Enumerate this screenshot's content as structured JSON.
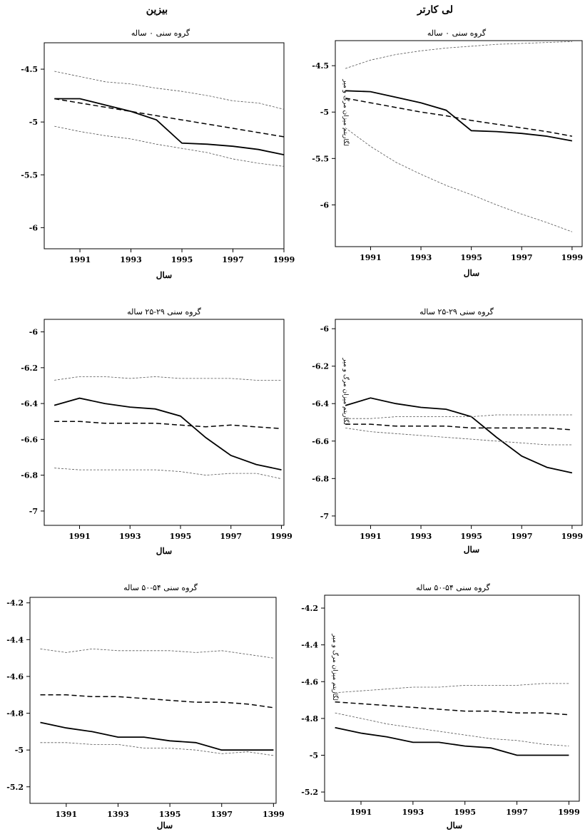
{
  "columns": {
    "left_title": "بیزین",
    "right_title": "لی کارتر"
  },
  "chart_data": [
    {
      "type": "line",
      "title": "گروه سنی ۰ ساله",
      "xlabel": "سال",
      "ylabel": "",
      "x": [
        1990,
        1991,
        1992,
        1993,
        1994,
        1995,
        1996,
        1997,
        1998,
        1999
      ],
      "xticks": [
        "1991",
        "1993",
        "1995",
        "1997",
        "1999"
      ],
      "xtick_values": [
        1991,
        1993,
        1995,
        1997,
        1999
      ],
      "yticks": [
        -4.5,
        -5,
        -5.5,
        -6
      ],
      "ytick_labels": [
        "-4.5",
        "-5",
        "-5.5",
        "-6"
      ],
      "xlim": [
        1989.6,
        1999.0
      ],
      "ylim": [
        -6.2,
        -4.25
      ],
      "series": [
        {
          "style": "solid",
          "values": [
            -4.78,
            -4.78,
            -4.84,
            -4.9,
            -4.98,
            -5.2,
            -5.21,
            -5.23,
            -5.26,
            -5.31
          ]
        },
        {
          "style": "dashed",
          "values": [
            -4.78,
            -4.82,
            -4.86,
            -4.9,
            -4.94,
            -4.98,
            -5.02,
            -5.06,
            -5.1,
            -5.14
          ]
        },
        {
          "style": "dotted",
          "values": [
            -4.52,
            -4.57,
            -4.62,
            -4.64,
            -4.68,
            -4.71,
            -4.75,
            -4.8,
            -4.82,
            -4.88
          ]
        },
        {
          "style": "dotted",
          "values": [
            -5.04,
            -5.09,
            -5.13,
            -5.16,
            -5.21,
            -5.25,
            -5.29,
            -5.35,
            -5.39,
            -5.42
          ]
        }
      ]
    },
    {
      "type": "line",
      "title": "گروه سنی ۰ ساله",
      "xlabel": "سال",
      "ylabel": "لگاریتم میزان مرگ و میر",
      "x": [
        1990,
        1991,
        1992,
        1993,
        1994,
        1995,
        1996,
        1997,
        1998,
        1999
      ],
      "xticks": [
        "1991",
        "1993",
        "1995",
        "1997",
        "1999"
      ],
      "xtick_values": [
        1991,
        1993,
        1995,
        1997,
        1999
      ],
      "yticks": [
        -4.5,
        -5,
        -5.5,
        -6
      ],
      "ytick_labels": [
        "-4.5",
        "-5",
        "-5.5",
        "-6"
      ],
      "xlim": [
        1989.6,
        1999.4
      ],
      "ylim": [
        -6.45,
        -4.23
      ],
      "series": [
        {
          "style": "solid",
          "values": [
            -4.77,
            -4.78,
            -4.84,
            -4.9,
            -4.98,
            -5.2,
            -5.21,
            -5.23,
            -5.26,
            -5.31
          ]
        },
        {
          "style": "dashed",
          "values": [
            -4.85,
            -4.9,
            -4.95,
            -5.0,
            -5.04,
            -5.09,
            -5.13,
            -5.17,
            -5.21,
            -5.26
          ]
        },
        {
          "style": "dotted",
          "values": [
            -4.53,
            -4.44,
            -4.38,
            -4.34,
            -4.31,
            -4.29,
            -4.27,
            -4.26,
            -4.25,
            -4.24
          ]
        },
        {
          "style": "dotted",
          "values": [
            -5.17,
            -5.37,
            -5.54,
            -5.67,
            -5.79,
            -5.89,
            -6.0,
            -6.1,
            -6.19,
            -6.29
          ]
        }
      ]
    },
    {
      "type": "line",
      "title": "گروه سنی ۲۹-۲۵ ساله",
      "xlabel": "سال",
      "ylabel": "",
      "x": [
        1990,
        1991,
        1992,
        1993,
        1994,
        1995,
        1996,
        1997,
        1998,
        1999
      ],
      "xticks": [
        "1991",
        "1993",
        "1995",
        "1997",
        "1999"
      ],
      "xtick_values": [
        1991,
        1993,
        1995,
        1997,
        1999
      ],
      "yticks": [
        -6,
        -6.2,
        -6.4,
        -6.6,
        -6.8,
        -7
      ],
      "ytick_labels": [
        "-6",
        "-6.2",
        "-6.4",
        "-6.6",
        "-6.8",
        "-7"
      ],
      "xlim": [
        1989.6,
        1999.1
      ],
      "ylim": [
        -7.08,
        -5.93
      ],
      "series": [
        {
          "style": "solid",
          "values": [
            -6.41,
            -6.37,
            -6.4,
            -6.42,
            -6.43,
            -6.47,
            -6.59,
            -6.69,
            -6.74,
            -6.77
          ]
        },
        {
          "style": "dashed",
          "values": [
            -6.5,
            -6.5,
            -6.51,
            -6.51,
            -6.51,
            -6.52,
            -6.53,
            -6.52,
            -6.53,
            -6.54
          ]
        },
        {
          "style": "dotted",
          "values": [
            -6.27,
            -6.25,
            -6.25,
            -6.26,
            -6.25,
            -6.26,
            -6.26,
            -6.26,
            -6.27,
            -6.27
          ]
        },
        {
          "style": "dotted",
          "values": [
            -6.76,
            -6.77,
            -6.77,
            -6.77,
            -6.77,
            -6.78,
            -6.8,
            -6.79,
            -6.79,
            -6.82
          ]
        }
      ]
    },
    {
      "type": "line",
      "title": "گروه سنی ۲۹-۲۵ ساله",
      "xlabel": "سال",
      "ylabel": "لگاریتم میزان مرگ و میر",
      "x": [
        1990,
        1991,
        1992,
        1993,
        1994,
        1995,
        1996,
        1997,
        1998,
        1999
      ],
      "xticks": [
        "1991",
        "1993",
        "1995",
        "1997",
        "1999"
      ],
      "xtick_values": [
        1991,
        1993,
        1995,
        1997,
        1999
      ],
      "yticks": [
        -6,
        -6.2,
        -6.4,
        -6.6,
        -6.8,
        -7
      ],
      "ytick_labels": [
        "-6",
        "-6.2",
        "-6.4",
        "-6.6",
        "-6.8",
        "-7"
      ],
      "xlim": [
        1989.6,
        1999.4
      ],
      "ylim": [
        -7.05,
        -5.95
      ],
      "series": [
        {
          "style": "solid",
          "values": [
            -6.41,
            -6.37,
            -6.4,
            -6.42,
            -6.43,
            -6.47,
            -6.58,
            -6.68,
            -6.74,
            -6.77
          ]
        },
        {
          "style": "dashed",
          "values": [
            -6.51,
            -6.51,
            -6.52,
            -6.52,
            -6.52,
            -6.53,
            -6.53,
            -6.53,
            -6.53,
            -6.54
          ]
        },
        {
          "style": "dotted",
          "values": [
            -6.48,
            -6.48,
            -6.47,
            -6.47,
            -6.47,
            -6.47,
            -6.46,
            -6.46,
            -6.46,
            -6.46
          ]
        },
        {
          "style": "dotted",
          "values": [
            -6.53,
            -6.55,
            -6.56,
            -6.57,
            -6.58,
            -6.59,
            -6.6,
            -6.61,
            -6.62,
            -6.62
          ]
        }
      ]
    },
    {
      "type": "line",
      "title": "گروه سنی ۵۴-۵۰ ساله",
      "xlabel": "سال",
      "ylabel": "",
      "x": [
        1390,
        1391,
        1392,
        1393,
        1394,
        1395,
        1396,
        1397,
        1398,
        1399
      ],
      "xticks": [
        "1391",
        "1393",
        "1395",
        "1397",
        "1399"
      ],
      "xtick_values": [
        1391,
        1393,
        1395,
        1397,
        1399
      ],
      "yticks": [
        -4.2,
        -4.4,
        -4.6,
        -4.8,
        -5,
        -5.2
      ],
      "ytick_labels": [
        "-4.2",
        "-4.4",
        "-4.6",
        "-4.8",
        "-5",
        "-5.2"
      ],
      "xlim": [
        1389.6,
        1399.1
      ],
      "ylim": [
        -5.29,
        -4.17
      ],
      "series": [
        {
          "style": "solid",
          "values": [
            -4.85,
            -4.88,
            -4.9,
            -4.93,
            -4.93,
            -4.95,
            -4.96,
            -5.0,
            -5.0,
            -5.0
          ]
        },
        {
          "style": "dashed",
          "values": [
            -4.7,
            -4.7,
            -4.71,
            -4.71,
            -4.72,
            -4.73,
            -4.74,
            -4.74,
            -4.75,
            -4.77
          ]
        },
        {
          "style": "dotted",
          "values": [
            -4.45,
            -4.47,
            -4.45,
            -4.46,
            -4.46,
            -4.46,
            -4.47,
            -4.46,
            -4.48,
            -4.5
          ]
        },
        {
          "style": "dotted",
          "values": [
            -4.96,
            -4.96,
            -4.97,
            -4.97,
            -4.99,
            -4.99,
            -5.0,
            -5.02,
            -5.01,
            -5.03
          ]
        }
      ]
    },
    {
      "type": "line",
      "title": "گروه سنی ۵۴-۵۰ ساله",
      "xlabel": "سال",
      "ylabel": "لگاریتم میزان مرگ و میر",
      "x": [
        1990,
        1991,
        1992,
        1993,
        1994,
        1995,
        1996,
        1997,
        1998,
        1999
      ],
      "xticks": [
        "1991",
        "1993",
        "1995",
        "1997",
        "1999"
      ],
      "xtick_values": [
        1991,
        1993,
        1995,
        1997,
        1999
      ],
      "yticks": [
        -4.2,
        -4.4,
        -4.6,
        -4.8,
        -5,
        -5.2
      ],
      "ytick_labels": [
        "-4.2",
        "-4.4",
        "-4.6",
        "-4.8",
        "-5",
        "-5.2"
      ],
      "xlim": [
        1989.6,
        1999.4
      ],
      "ylim": [
        -5.25,
        -4.13
      ],
      "series": [
        {
          "style": "solid",
          "values": [
            -4.85,
            -4.88,
            -4.9,
            -4.93,
            -4.93,
            -4.95,
            -4.96,
            -5.0,
            -5.0,
            -5.0
          ]
        },
        {
          "style": "dashed",
          "values": [
            -4.71,
            -4.72,
            -4.73,
            -4.74,
            -4.75,
            -4.76,
            -4.76,
            -4.77,
            -4.77,
            -4.78
          ]
        },
        {
          "style": "dotted",
          "values": [
            -4.66,
            -4.65,
            -4.64,
            -4.63,
            -4.63,
            -4.62,
            -4.62,
            -4.62,
            -4.61,
            -4.61
          ]
        },
        {
          "style": "dotted",
          "values": [
            -4.77,
            -4.8,
            -4.83,
            -4.85,
            -4.87,
            -4.89,
            -4.91,
            -4.92,
            -4.94,
            -4.95
          ]
        }
      ]
    }
  ]
}
